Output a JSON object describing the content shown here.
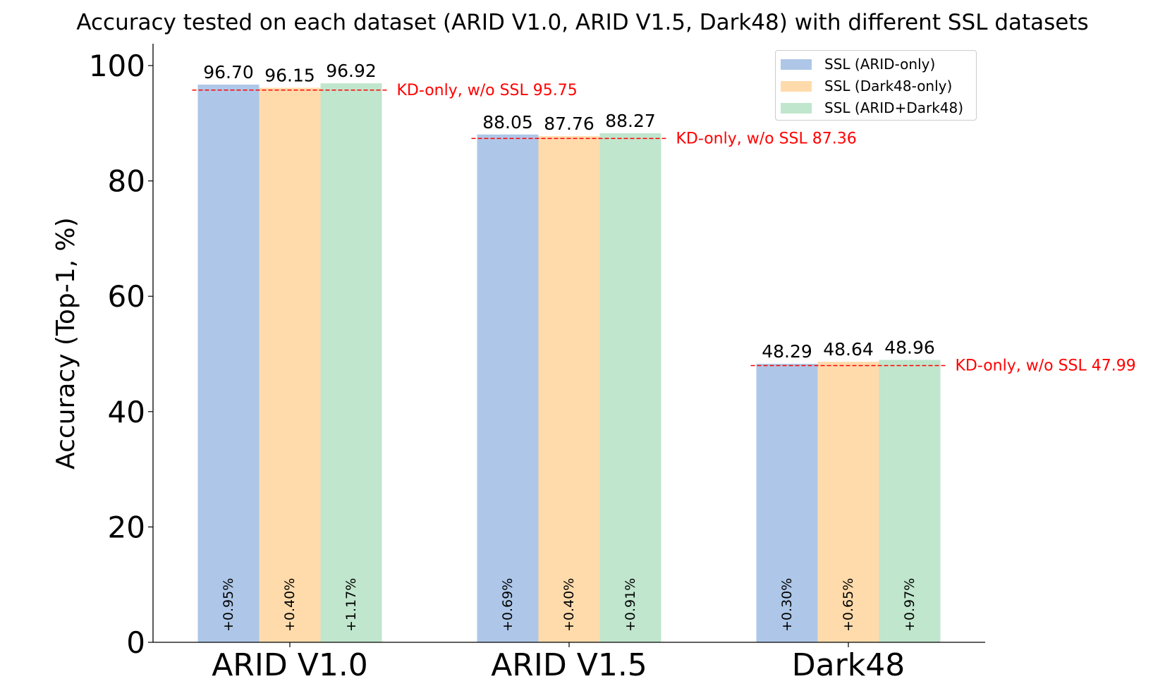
{
  "chart_data": {
    "type": "bar",
    "title": "Accuracy tested on each dataset (ARID V1.0, ARID V1.5, Dark48) with different SSL datasets",
    "ylabel": "Accuracy (Top-1, %)",
    "xlabel": "",
    "ylim": [
      0,
      103
    ],
    "yticks": [
      0,
      20,
      40,
      60,
      80,
      100
    ],
    "categories": [
      "ARID V1.0",
      "ARID V1.5",
      "Dark48"
    ],
    "series": [
      {
        "name": "SSL (ARID-only)",
        "color": "#aec7e8",
        "values": [
          96.7,
          88.05,
          48.29
        ],
        "value_labels": [
          "96.70",
          "88.05",
          "48.29"
        ],
        "gain_labels": [
          "+0.95%",
          "+0.69%",
          "+0.30%"
        ]
      },
      {
        "name": "SSL (Dark48-only)",
        "color": "#ffdbac",
        "values": [
          96.15,
          87.76,
          48.64
        ],
        "value_labels": [
          "96.15",
          "87.76",
          "48.64"
        ],
        "gain_labels": [
          "+0.40%",
          "+0.40%",
          "+0.65%"
        ]
      },
      {
        "name": "SSL (ARID+Dark48)",
        "color": "#c0e6cd",
        "values": [
          96.92,
          88.27,
          48.96
        ],
        "value_labels": [
          "96.92",
          "88.27",
          "48.96"
        ],
        "gain_labels": [
          "+1.17%",
          "+0.91%",
          "+0.97%"
        ]
      }
    ],
    "baselines": [
      {
        "value": 95.75,
        "label": "KD-only, w/o SSL 95.75"
      },
      {
        "value": 87.36,
        "label": "KD-only, w/o SSL 87.36"
      },
      {
        "value": 47.99,
        "label": "KD-only, w/o SSL 47.99"
      }
    ],
    "baseline_color": "#ff0000",
    "legend_position": "top-right",
    "grid": false
  }
}
